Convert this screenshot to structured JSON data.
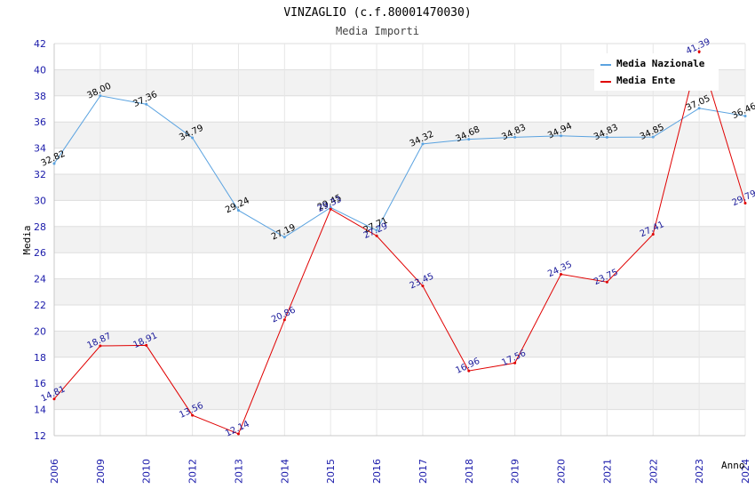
{
  "chart_data": {
    "type": "line",
    "title": "VINZAGLIO (c.f.80001470030)",
    "subtitle": "Media Importi",
    "xlabel": "Anno",
    "ylabel": "Media",
    "ylim": [
      12,
      42
    ],
    "yticks": [
      12,
      14,
      16,
      18,
      20,
      22,
      24,
      26,
      28,
      30,
      32,
      34,
      36,
      38,
      40,
      42
    ],
    "categories": [
      "2006",
      "2009",
      "2010",
      "2012",
      "2013",
      "2014",
      "2015",
      "2016",
      "2017",
      "2018",
      "2019",
      "2020",
      "2021",
      "2022",
      "2023",
      "2024"
    ],
    "legend_position": "top-right",
    "series": [
      {
        "name": "Media Nazionale",
        "color": "#5ba3e0",
        "values": [
          32.82,
          38.0,
          37.36,
          34.79,
          29.24,
          27.19,
          29.45,
          27.71,
          34.32,
          34.68,
          34.83,
          34.94,
          34.83,
          34.85,
          37.05,
          36.46
        ],
        "labels": [
          "32.82",
          "38.00",
          "37.36",
          "34.79",
          "29.24",
          "27.19",
          "29.45",
          "27.71",
          "34.32",
          "34.68",
          "34.83",
          "34.94",
          "34.83",
          "34.85",
          "37.05",
          "36.46"
        ]
      },
      {
        "name": "Media Ente",
        "color": "#e00000",
        "values": [
          14.81,
          18.87,
          18.91,
          13.56,
          12.14,
          20.86,
          29.33,
          27.29,
          23.45,
          16.96,
          17.56,
          24.35,
          23.75,
          27.41,
          41.39,
          29.79
        ],
        "labels": [
          "14.81",
          "18.87",
          "18.91",
          "13.56",
          "12.14",
          "20.86",
          "29.33",
          "27.29",
          "23.45",
          "16.96",
          "17.56",
          "24.35",
          "23.75",
          "27.41",
          "41.39",
          "29.79"
        ]
      }
    ]
  }
}
